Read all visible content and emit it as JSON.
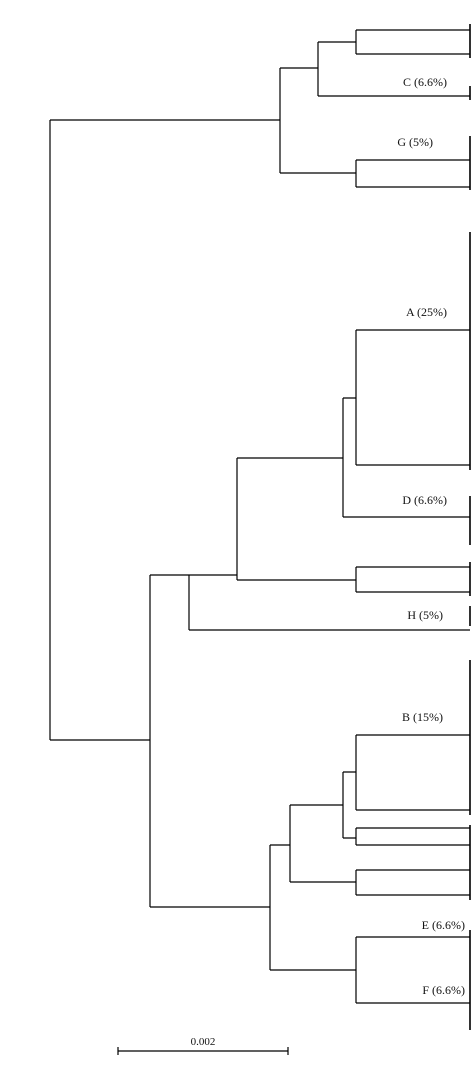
{
  "clusters": [
    {
      "label": "C (6.6%)"
    },
    {
      "label": "G (5%)"
    },
    {
      "label": "A (25%)"
    },
    {
      "label": "D (6.6%)"
    },
    {
      "label": "H (5%)"
    },
    {
      "label": "B (15%)"
    },
    {
      "label": "E (6.6%)"
    },
    {
      "label": "F (6.6%)"
    }
  ],
  "scale_bar": {
    "label": "0.002"
  }
}
